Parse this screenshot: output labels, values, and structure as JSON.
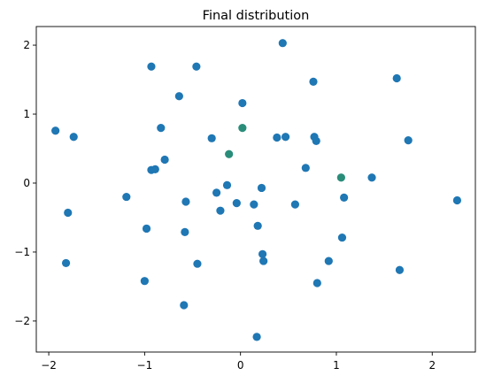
{
  "chart_data": {
    "type": "scatter",
    "title": "Final distribution",
    "xlabel": "",
    "ylabel": "",
    "xlim": [
      -2.13,
      2.45
    ],
    "ylim": [
      -2.45,
      2.27
    ],
    "xticks": [
      -2,
      -1,
      0,
      1,
      2
    ],
    "yticks": [
      -2,
      -1,
      0,
      1,
      2
    ],
    "xtick_labels": [
      "−2",
      "−1",
      "0",
      "1",
      "2"
    ],
    "ytick_labels": [
      "−2",
      "−1",
      "0",
      "1",
      "2"
    ],
    "grid": false,
    "legend": "none",
    "marker_color": "#1f77b4",
    "accent_marker_color": "#2a8d7a",
    "points": [
      {
        "x": 0.44,
        "y": 2.03
      },
      {
        "x": -0.93,
        "y": 1.69
      },
      {
        "x": -0.46,
        "y": 1.69
      },
      {
        "x": 1.63,
        "y": 1.52
      },
      {
        "x": 0.76,
        "y": 1.47
      },
      {
        "x": -0.64,
        "y": 1.26
      },
      {
        "x": 0.02,
        "y": 1.16
      },
      {
        "x": -1.93,
        "y": 0.76
      },
      {
        "x": -1.74,
        "y": 0.67
      },
      {
        "x": -0.83,
        "y": 0.8
      },
      {
        "x": 0.02,
        "y": 0.8,
        "accent": true
      },
      {
        "x": -0.3,
        "y": 0.65
      },
      {
        "x": 0.38,
        "y": 0.66
      },
      {
        "x": 0.47,
        "y": 0.67
      },
      {
        "x": 0.77,
        "y": 0.67
      },
      {
        "x": 0.79,
        "y": 0.61
      },
      {
        "x": 1.75,
        "y": 0.62
      },
      {
        "x": -0.12,
        "y": 0.42,
        "accent": true
      },
      {
        "x": -0.79,
        "y": 0.34
      },
      {
        "x": -0.93,
        "y": 0.19
      },
      {
        "x": -0.89,
        "y": 0.2
      },
      {
        "x": 0.68,
        "y": 0.22
      },
      {
        "x": 1.05,
        "y": 0.08,
        "accent": true
      },
      {
        "x": 1.37,
        "y": 0.08
      },
      {
        "x": -0.14,
        "y": -0.03
      },
      {
        "x": 0.22,
        "y": -0.07
      },
      {
        "x": -1.19,
        "y": -0.2
      },
      {
        "x": -0.25,
        "y": -0.14
      },
      {
        "x": 1.08,
        "y": -0.21
      },
      {
        "x": -0.57,
        "y": -0.27
      },
      {
        "x": -0.04,
        "y": -0.29
      },
      {
        "x": 0.14,
        "y": -0.31
      },
      {
        "x": 0.57,
        "y": -0.31
      },
      {
        "x": 2.26,
        "y": -0.25
      },
      {
        "x": -1.8,
        "y": -0.43
      },
      {
        "x": -0.21,
        "y": -0.4
      },
      {
        "x": 0.18,
        "y": -0.62
      },
      {
        "x": -0.98,
        "y": -0.66
      },
      {
        "x": -0.58,
        "y": -0.71
      },
      {
        "x": 1.06,
        "y": -0.79
      },
      {
        "x": 0.23,
        "y": -1.03
      },
      {
        "x": 0.24,
        "y": -1.13
      },
      {
        "x": -1.82,
        "y": -1.16
      },
      {
        "x": -0.45,
        "y": -1.17
      },
      {
        "x": 0.92,
        "y": -1.13
      },
      {
        "x": 1.66,
        "y": -1.26
      },
      {
        "x": -1.0,
        "y": -1.42
      },
      {
        "x": 0.8,
        "y": -1.45
      },
      {
        "x": -0.59,
        "y": -1.77
      },
      {
        "x": 0.17,
        "y": -2.23
      }
    ]
  }
}
